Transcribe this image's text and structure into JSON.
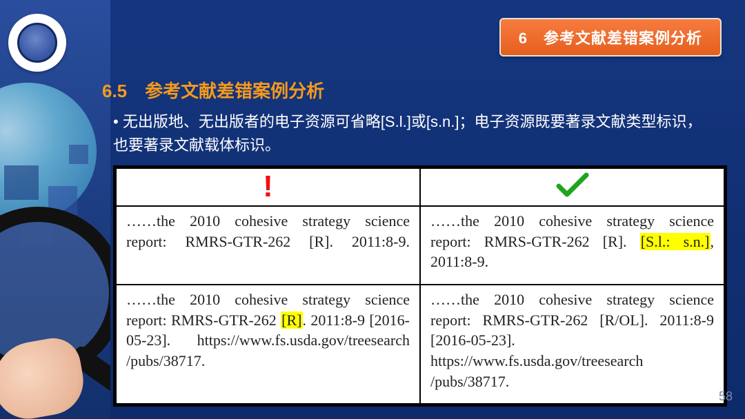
{
  "header": {
    "badge_text": "6　参考文献差错案例分析"
  },
  "section": {
    "number_title": "6.5　参考文献差错案例分析",
    "bullet_text": "• 无出版地、无出版者的电子资源可省略[S.l.]或[s.n.]；电子资源既要著录文献类型标识，也要著录文献载体标识。"
  },
  "table": {
    "icons": {
      "wrong": "!",
      "correct": "✓"
    },
    "colors": {
      "wrong": "#e11b1b",
      "correct": "#1fa51f",
      "highlight": "#ffff00"
    },
    "rows": [
      {
        "wrong": {
          "segments": [
            {
              "t": "……the 2010 cohesive strategy science report: RMRS-GTR-262 [R]. 2011:8-9."
            }
          ]
        },
        "correct": {
          "segments": [
            {
              "t": "……the 2010 cohesive strategy science report: RMRS-GTR-262 [R]. "
            },
            {
              "t": "[S.l.: s.n.]",
              "hl": true
            },
            {
              "t": ", 2011:8-9."
            }
          ]
        }
      },
      {
        "wrong": {
          "segments": [
            {
              "t": "……the 2010 cohesive strategy science report: RMRS-GTR-262 "
            },
            {
              "t": "[R]",
              "hl": true
            },
            {
              "t": ". 2011:8-9 [2016-05-23]. https://www.fs.usda.gov/treesearch /pubs/38717."
            }
          ]
        },
        "correct": {
          "segments": [
            {
              "t": "……the 2010 cohesive strategy science report: RMRS-GTR-262 [R/OL]. 2011:8-9 [2016-05-23]. https://www.fs.usda.gov/treesearch /pubs/38717."
            }
          ]
        }
      }
    ]
  },
  "page_number": "58"
}
